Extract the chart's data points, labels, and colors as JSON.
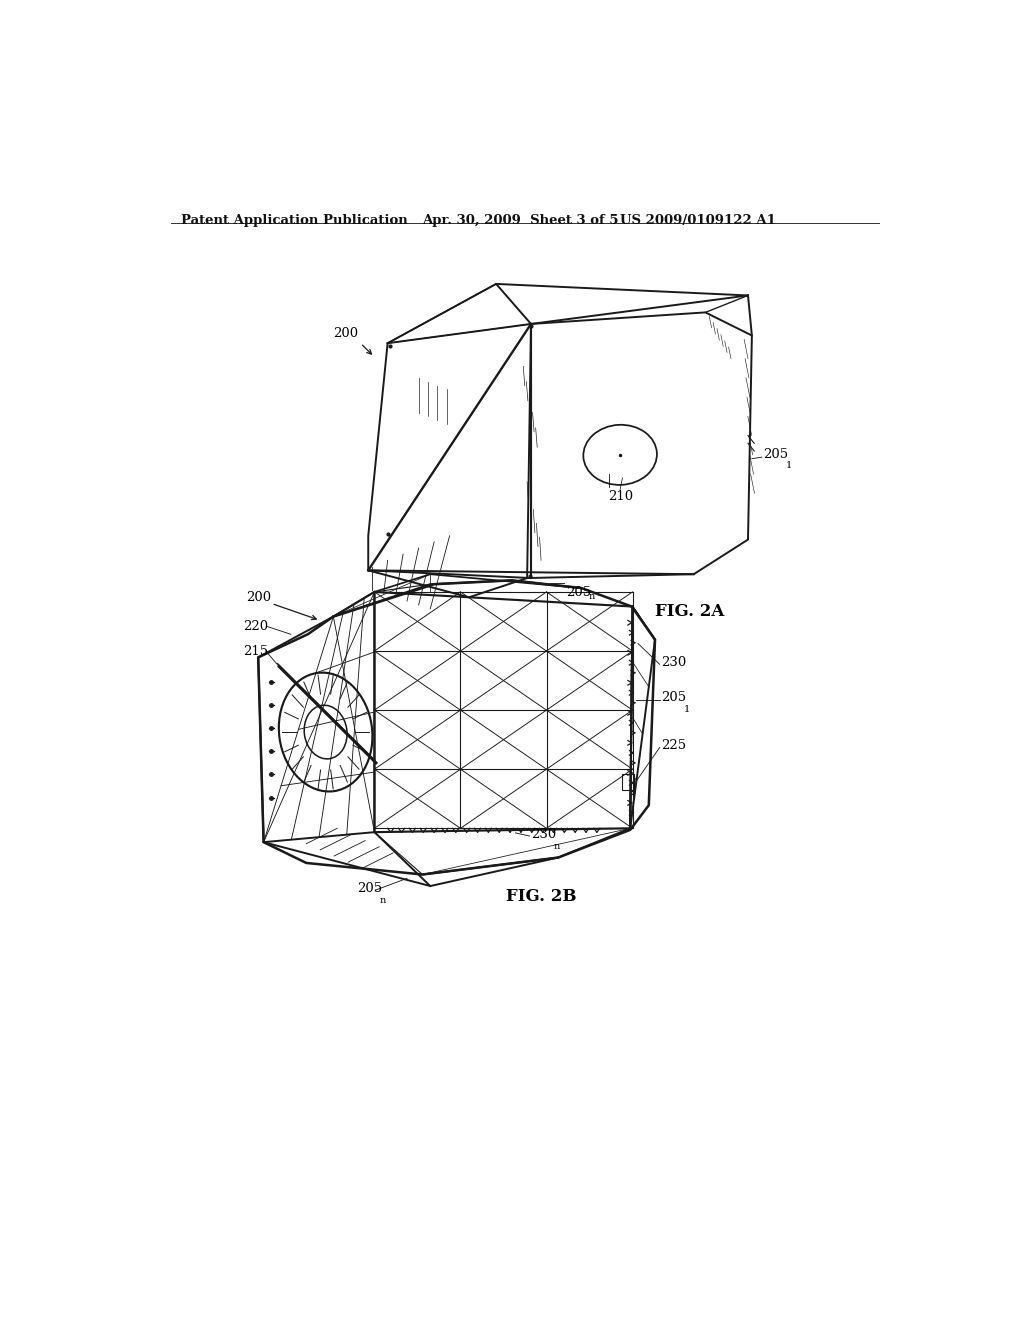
{
  "background_color": "#ffffff",
  "header_left": "Patent Application Publication",
  "header_center": "Apr. 30, 2009  Sheet 3 of 5",
  "header_right": "US 2009/0109122 A1",
  "fig2a_label": "FIG. 2A",
  "fig2b_label": "FIG. 2B",
  "color": "#1a1a1a",
  "lw_main": 1.4,
  "lw_thin": 0.8,
  "lw_hatch": 0.6
}
